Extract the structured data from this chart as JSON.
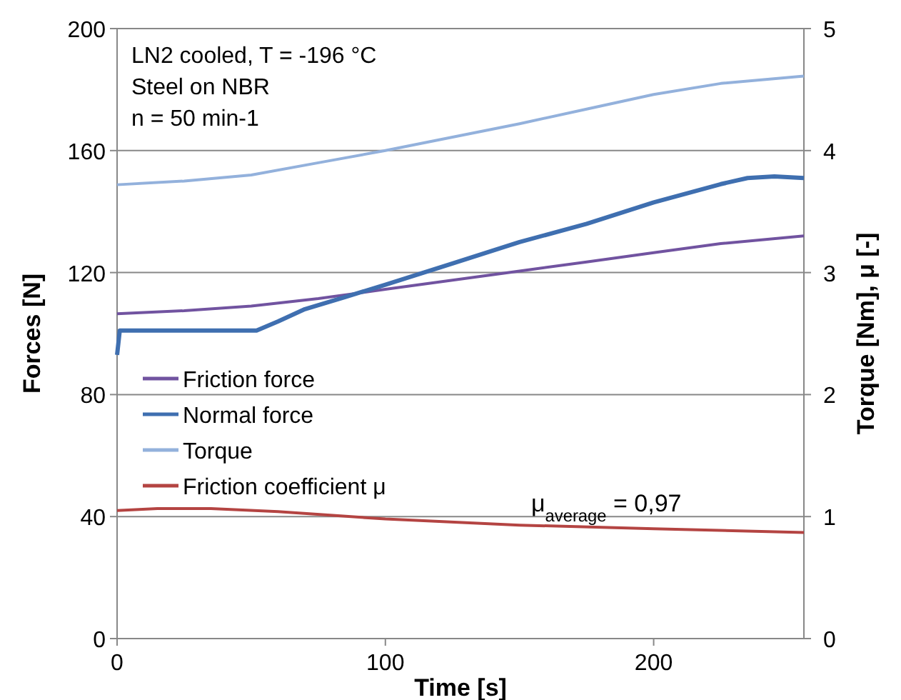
{
  "chart_data": {
    "type": "line",
    "xlabel": "Time [s]",
    "ylabel": "Forces [N]",
    "y2label": "Torque [Nm], μ [-]",
    "annotations": [
      "LN2 cooled, T = -196 °C",
      "Steel on NBR",
      "n = 50 min-1",
      "μ$_{average}$ = 0,97"
    ],
    "xlim": [
      0,
      256
    ],
    "xticks": [
      0,
      100,
      200
    ],
    "ylim": [
      0,
      200
    ],
    "yticks": [
      0,
      40,
      80,
      120,
      160,
      200
    ],
    "y2lim": [
      0,
      5
    ],
    "y2ticks": [
      0,
      1,
      2,
      3,
      4,
      5
    ],
    "grid": "y",
    "legend": "left",
    "line_style": "solid",
    "marker": "none",
    "series": [
      {
        "name": "Friction force",
        "color": "#7153a0",
        "x": [
          0,
          25,
          50,
          75,
          100,
          125,
          150,
          175,
          200,
          225,
          256
        ],
        "values": [
          106.5,
          107.5,
          109,
          111.5,
          114.5,
          117.5,
          120.5,
          123.5,
          126.5,
          129.5,
          132
        ]
      },
      {
        "name": "Normal force",
        "color": "#3f6fb0",
        "x": [
          0,
          1,
          5,
          52,
          60,
          70,
          85,
          100,
          125,
          150,
          175,
          200,
          225,
          235,
          245,
          256
        ],
        "values": [
          93,
          101,
          101,
          101,
          104,
          108,
          112,
          116,
          123,
          130,
          136,
          143,
          149,
          151,
          151.5,
          151
        ]
      },
      {
        "name": "Torque",
        "color": "#93b1dc",
        "axis": "y2",
        "x": [
          0,
          25,
          50,
          75,
          100,
          125,
          150,
          175,
          200,
          225,
          256
        ],
        "values": [
          3.72,
          3.75,
          3.8,
          3.9,
          4.0,
          4.11,
          4.22,
          4.34,
          4.46,
          4.55,
          4.61
        ]
      },
      {
        "name": "Friction coefficient μ",
        "color": "#b44442",
        "axis": "y2",
        "x": [
          0,
          15,
          35,
          60,
          100,
          150,
          200,
          256
        ],
        "values": [
          1.05,
          1.065,
          1.065,
          1.04,
          0.98,
          0.93,
          0.9,
          0.87
        ]
      }
    ]
  }
}
